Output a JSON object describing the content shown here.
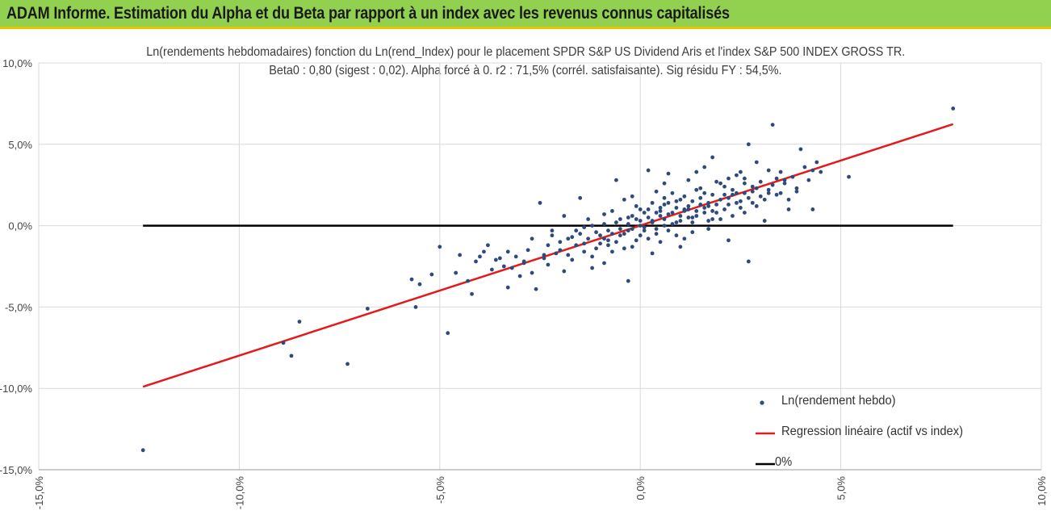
{
  "banner": {
    "title": "ADAM Informe. Estimation du Alpha et du Beta par rapport à un index avec les revenus connus capitalisés",
    "color": "#92d050"
  },
  "chart_data": {
    "type": "scatter",
    "title_line1": "Ln(rendements hebdomadaires) fonction du Ln(rend_Index) pour le placement SPDR S&P US Dividend Aris et l'index S&P 500 INDEX GROSS TR.",
    "title_line2": "Beta0 : 0,80 (sigest : 0,02). Alpha forcé à 0. r2 : 71,5% (corrél. satisfaisante). Sig résidu FY : 54,5%.",
    "xlim": [
      -15,
      10
    ],
    "ylim": [
      -15,
      10
    ],
    "x_ticks": [
      -15,
      -10,
      -5,
      0,
      5,
      10
    ],
    "y_ticks": [
      -15,
      -10,
      -5,
      0,
      5,
      10
    ],
    "x_tick_labels": [
      "-15,0%",
      "-10,0%",
      "-5,0%",
      "0,0%",
      "5,0%",
      "10,0%"
    ],
    "y_tick_labels": [
      "-15,0%",
      "-10,0%",
      "-5,0%",
      "0,0%",
      "5,0%",
      "10,0%"
    ],
    "grid": true,
    "legend_position": "bottom-right",
    "series": [
      {
        "name": "Ln(rendement hebdo)",
        "kind": "scatter",
        "color": "#2e4a7d",
        "points": [
          [
            -12.4,
            -13.8
          ],
          [
            -8.9,
            -7.2
          ],
          [
            -8.7,
            -8.0
          ],
          [
            -8.5,
            -5.9
          ],
          [
            -7.3,
            -8.5
          ],
          [
            -6.8,
            -5.1
          ],
          [
            -5.7,
            -3.3
          ],
          [
            -5.6,
            -5.0
          ],
          [
            -5.5,
            -3.6
          ],
          [
            -5.2,
            -3.0
          ],
          [
            -5.0,
            -1.3
          ],
          [
            -4.8,
            -6.6
          ],
          [
            -4.6,
            -2.9
          ],
          [
            -4.5,
            -1.8
          ],
          [
            -4.3,
            -3.4
          ],
          [
            -4.2,
            -4.2
          ],
          [
            -4.1,
            -2.2
          ],
          [
            -3.9,
            -1.6
          ],
          [
            -3.8,
            -1.2
          ],
          [
            -3.7,
            -2.7
          ],
          [
            -3.5,
            -2.0
          ],
          [
            -3.4,
            -2.5
          ],
          [
            -3.3,
            -3.8
          ],
          [
            -3.2,
            -2.6
          ],
          [
            -3.1,
            -1.9
          ],
          [
            -3.0,
            -3.1
          ],
          [
            -2.9,
            -2.3
          ],
          [
            -2.8,
            -1.5
          ],
          [
            -2.7,
            -2.9
          ],
          [
            -2.6,
            -3.9
          ],
          [
            -2.5,
            1.4
          ],
          [
            -2.4,
            -1.8
          ],
          [
            -2.3,
            -2.4
          ],
          [
            -2.2,
            -0.6
          ],
          [
            -2.1,
            -1.7
          ],
          [
            -2.0,
            -1.0
          ],
          [
            -1.9,
            -2.8
          ],
          [
            -1.8,
            -0.8
          ],
          [
            -1.7,
            -2.1
          ],
          [
            -1.6,
            -1.2
          ],
          [
            -1.5,
            -0.5
          ],
          [
            -1.4,
            -1.6
          ],
          [
            -1.3,
            0.4
          ],
          [
            -1.2,
            -1.9
          ],
          [
            -1.1,
            -0.4
          ],
          [
            -1.0,
            -1.1
          ],
          [
            -0.9,
            0.7
          ],
          [
            -0.8,
            -0.9
          ],
          [
            -0.7,
            -1.6
          ],
          [
            -0.6,
            0.2
          ],
          [
            -0.5,
            -0.6
          ],
          [
            -0.4,
            -1.4
          ],
          [
            -0.3,
            0.5
          ],
          [
            -0.2,
            -0.2
          ],
          [
            -0.1,
            -0.9
          ],
          [
            0.0,
            0.3
          ],
          [
            0.1,
            -0.3
          ],
          [
            0.2,
            1.0
          ],
          [
            0.3,
            0.2
          ],
          [
            0.4,
            -0.5
          ],
          [
            0.5,
            0.9
          ],
          [
            0.6,
            0.4
          ],
          [
            0.7,
            1.4
          ],
          [
            0.8,
            0.1
          ],
          [
            0.9,
            1.1
          ],
          [
            1.0,
            0.6
          ],
          [
            1.1,
            1.8
          ],
          [
            1.2,
            0.5
          ],
          [
            1.3,
            1.5
          ],
          [
            1.4,
            0.9
          ],
          [
            1.5,
            2.3
          ],
          [
            1.6,
            1.1
          ],
          [
            1.7,
            0.3
          ],
          [
            1.8,
            1.9
          ],
          [
            1.9,
            1.3
          ],
          [
            2.0,
            2.6
          ],
          [
            2.1,
            1.0
          ],
          [
            2.2,
            1.7
          ],
          [
            2.3,
            0.6
          ],
          [
            2.4,
            2.0
          ],
          [
            2.5,
            1.5
          ],
          [
            2.6,
            2.9
          ],
          [
            2.7,
            -2.2
          ],
          [
            2.8,
            2.1
          ],
          [
            2.9,
            1.2
          ],
          [
            3.0,
            2.7
          ],
          [
            3.1,
            0.3
          ],
          [
            3.2,
            2.2
          ],
          [
            3.3,
            6.2
          ],
          [
            3.4,
            1.9
          ],
          [
            3.5,
            3.3
          ],
          [
            3.6,
            2.6
          ],
          [
            3.7,
            1.6
          ],
          [
            3.8,
            3.0
          ],
          [
            3.9,
            2.3
          ],
          [
            4.0,
            4.7
          ],
          [
            4.1,
            3.6
          ],
          [
            4.2,
            2.8
          ],
          [
            4.3,
            1.0
          ],
          [
            4.4,
            3.9
          ],
          [
            4.5,
            3.3
          ],
          [
            5.2,
            3.0
          ],
          [
            7.8,
            7.2
          ],
          [
            0.2,
            3.4
          ],
          [
            -0.6,
            2.8
          ],
          [
            -0.3,
            -3.4
          ],
          [
            1.8,
            4.2
          ],
          [
            2.7,
            5.0
          ],
          [
            3.7,
            1.0
          ],
          [
            0.6,
            2.6
          ],
          [
            -1.5,
            1.7
          ],
          [
            -0.9,
            -2.3
          ],
          [
            1.0,
            -1.3
          ],
          [
            2.2,
            -0.9
          ],
          [
            1.4,
            3.3
          ],
          [
            -1.9,
            0.6
          ],
          [
            0.9,
            -0.6
          ],
          [
            0.4,
            2.1
          ],
          [
            3.9,
            2.1
          ],
          [
            -0.4,
            1.6
          ],
          [
            2.9,
            3.9
          ],
          [
            1.2,
            2.8
          ],
          [
            -2.7,
            -0.8
          ],
          [
            -3.6,
            -2.1
          ],
          [
            -4.0,
            -1.9
          ],
          [
            -1.2,
            -2.6
          ],
          [
            0.3,
            -1.7
          ],
          [
            0.7,
            3.2
          ],
          [
            1.6,
            3.6
          ],
          [
            2.5,
            3.3
          ],
          [
            3.2,
            3.4
          ],
          [
            -0.1,
            1.2
          ],
          [
            0.5,
            -1.0
          ],
          [
            1.7,
            -0.2
          ],
          [
            2.0,
            0.4
          ],
          [
            2.6,
            0.8
          ],
          [
            3.5,
            2.0
          ],
          [
            4.3,
            3.4
          ],
          [
            -0.7,
            0.9
          ],
          [
            -0.2,
            1.8
          ],
          [
            0.8,
            2.0
          ],
          [
            1.3,
            -0.4
          ],
          [
            1.9,
            2.7
          ],
          [
            2.4,
            3.1
          ],
          [
            -2.3,
            -1.2
          ],
          [
            -1.7,
            -0.7
          ],
          [
            -1.1,
            -1.4
          ],
          [
            -0.5,
            0.4
          ],
          [
            0.1,
            0.8
          ],
          [
            0.6,
            1.3
          ],
          [
            1.1,
            0.9
          ],
          [
            1.5,
            1.7
          ],
          [
            2.1,
            1.9
          ],
          [
            2.8,
            2.4
          ],
          [
            3.4,
            2.9
          ],
          [
            -3.3,
            -1.6
          ],
          [
            -2.9,
            -2.2
          ],
          [
            -2.4,
            -2.0
          ],
          [
            -1.8,
            -1.8
          ],
          [
            -1.3,
            -0.8
          ],
          [
            -0.8,
            -0.3
          ],
          [
            -0.3,
            0.1
          ],
          [
            0.2,
            0.5
          ],
          [
            0.7,
            0.7
          ],
          [
            1.2,
            1.2
          ],
          [
            1.7,
            1.4
          ],
          [
            2.3,
            1.9
          ],
          [
            2.9,
            2.3
          ],
          [
            3.6,
            2.8
          ],
          [
            -0.9,
            0.1
          ],
          [
            -0.4,
            -0.5
          ],
          [
            0.1,
            -0.1
          ],
          [
            0.6,
            0.0
          ],
          [
            1.0,
            0.3
          ],
          [
            1.4,
            0.6
          ],
          [
            1.8,
            0.9
          ],
          [
            2.2,
            1.3
          ],
          [
            2.7,
            1.7
          ],
          [
            -1.6,
            -0.3
          ],
          [
            -1.0,
            -0.6
          ],
          [
            -0.6,
            -1.0
          ],
          [
            0.0,
            -0.6
          ],
          [
            0.4,
            -0.2
          ],
          [
            0.9,
            0.2
          ],
          [
            1.3,
            0.5
          ],
          [
            1.9,
            0.8
          ],
          [
            2.5,
            1.1
          ],
          [
            3.1,
            1.6
          ],
          [
            -2.0,
            -1.5
          ],
          [
            -1.4,
            -1.1
          ],
          [
            -0.2,
            -1.3
          ],
          [
            0.3,
            1.4
          ],
          [
            1.0,
            1.6
          ],
          [
            1.6,
            2.0
          ],
          [
            2.1,
            2.4
          ],
          [
            2.6,
            2.0
          ],
          [
            3.3,
            2.5
          ],
          [
            -0.7,
            -0.5
          ],
          [
            0.5,
            0.6
          ],
          [
            1.1,
            1.0
          ],
          [
            1.5,
            1.3
          ],
          [
            2.0,
            1.6
          ],
          [
            2.4,
            1.4
          ],
          [
            0.0,
            0.0
          ],
          [
            0.3,
            0.3
          ],
          [
            0.8,
            0.8
          ],
          [
            1.2,
            1.0
          ],
          [
            1.7,
            1.2
          ],
          [
            -0.1,
            0.4
          ],
          [
            0.4,
            0.8
          ],
          [
            -0.3,
            -0.3
          ],
          [
            0.2,
            -0.8
          ],
          [
            0.6,
            1.7
          ],
          [
            1.4,
            2.2
          ],
          [
            2.2,
            2.9
          ],
          [
            -1.2,
            0.0
          ],
          [
            -0.5,
            -0.2
          ],
          [
            0.7,
            -0.3
          ],
          [
            1.8,
            0.4
          ],
          [
            2.8,
            1.4
          ],
          [
            -2.2,
            -0.3
          ],
          [
            -0.8,
            -1.2
          ],
          [
            1.1,
            -0.8
          ],
          [
            3.0,
            1.8
          ],
          [
            0.0,
            1.0
          ],
          [
            -0.2,
            0.6
          ],
          [
            0.5,
            1.1
          ],
          [
            1.3,
            0.2
          ],
          [
            2.3,
            2.2
          ],
          [
            -1.4,
            -0.1
          ],
          [
            -0.9,
            -0.8
          ],
          [
            0.9,
            1.5
          ],
          [
            1.6,
            0.8
          ],
          [
            2.6,
            2.6
          ],
          [
            3.2,
            2.0
          ]
        ]
      },
      {
        "name": "Regression linéaire (actif vs index)",
        "kind": "line",
        "color": "#e31a1c",
        "points": [
          [
            -12.4,
            -9.9
          ],
          [
            7.8,
            6.24
          ]
        ]
      },
      {
        "name": "0%",
        "kind": "line",
        "color": "#000000",
        "points": [
          [
            -12.4,
            0.0
          ],
          [
            7.8,
            0.0
          ]
        ]
      }
    ]
  }
}
